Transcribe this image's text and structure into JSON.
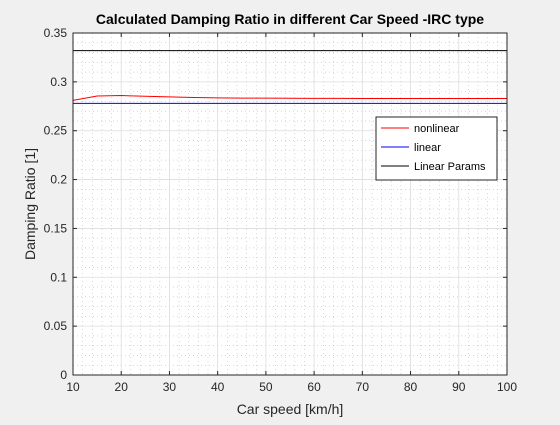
{
  "chart_data": {
    "type": "line",
    "title": "Calculated Damping Ratio in different Car Speed -IRC type",
    "xlabel": "Car speed [km/h]",
    "ylabel": "Damping Ratio [1]",
    "xlim": [
      10,
      100
    ],
    "ylim": [
      0,
      0.35
    ],
    "xticks": [
      10,
      20,
      30,
      40,
      50,
      60,
      70,
      80,
      90,
      100
    ],
    "xtick_labels": [
      "10",
      "20",
      "30",
      "40",
      "50",
      "60",
      "70",
      "80",
      "90",
      "100"
    ],
    "yticks": [
      0,
      0.05,
      0.1,
      0.15,
      0.2,
      0.25,
      0.3,
      0.35
    ],
    "ytick_labels": [
      "0",
      "0.05",
      "0.1",
      "0.15",
      "0.2",
      "0.25",
      "0.3",
      "0.35"
    ],
    "grid": true,
    "minor_grid": true,
    "legend_position": "top-right",
    "series": [
      {
        "name": "nonlinear",
        "color": "#ff0000",
        "x": [
          10,
          15,
          20,
          25,
          30,
          35,
          40,
          45,
          50,
          55,
          60,
          65,
          70,
          75,
          80,
          85,
          90,
          95,
          100
        ],
        "y": [
          0.281,
          0.2855,
          0.286,
          0.2853,
          0.2846,
          0.284,
          0.2836,
          0.2834,
          0.2833,
          0.2832,
          0.2831,
          0.2831,
          0.283,
          0.283,
          0.283,
          0.283,
          0.283,
          0.283,
          0.283
        ]
      },
      {
        "name": "linear",
        "color": "#0000ff",
        "x": [
          10,
          100
        ],
        "y": [
          0.278,
          0.278
        ]
      },
      {
        "name": "Linear Params",
        "color": "#000000",
        "x": [
          10,
          100
        ],
        "y": [
          0.332,
          0.332
        ]
      }
    ]
  }
}
